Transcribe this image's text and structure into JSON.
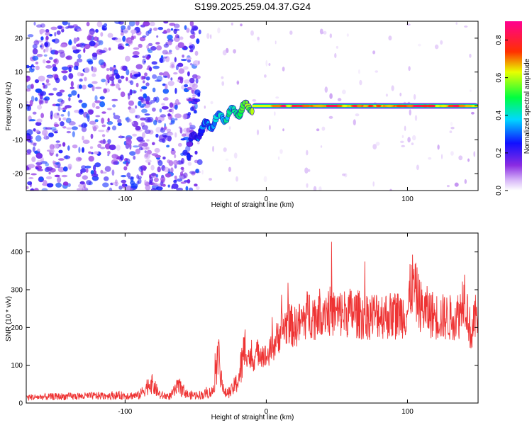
{
  "figure_title": "S199.2025.259.04.37.G24",
  "chart_data": [
    {
      "type": "heatmap",
      "title": "S199.2025.259.04.37.G24",
      "xlabel": "Height of straight line (km)",
      "ylabel": "Frequency (Hz)",
      "xlim": [
        -170,
        150
      ],
      "ylim": [
        -25,
        25
      ],
      "x_ticks": [
        -100,
        0,
        100
      ],
      "x_tick_labels": [
        "-100",
        "0",
        "100"
      ],
      "y_ticks": [
        -20,
        -10,
        0,
        10,
        20
      ],
      "y_tick_labels": [
        "-20",
        "-10",
        "0",
        "10",
        "20"
      ],
      "colorbar": {
        "label": "Normalized spectral amplitude",
        "range": [
          0.0,
          0.9
        ],
        "ticks": [
          0.0,
          0.2,
          0.4,
          0.6,
          0.8
        ],
        "tick_labels": [
          "0.0",
          "0.2",
          "0.4",
          "0.6",
          "0.8"
        ],
        "colormap": "rainbow (white-violet-blue-cyan-green-yellow-red-magenta)"
      },
      "features": {
        "noise_region_x": [
          -170,
          -55
        ],
        "noise_amplitude_range": [
          0.05,
          0.3
        ],
        "transition_x": [
          -55,
          -10
        ],
        "signal_band_frequency_hz": 0,
        "signal_band_x": [
          -10,
          150
        ],
        "signal_band_peak_amplitude": 0.85
      }
    },
    {
      "type": "line",
      "title": "",
      "xlabel": "Height of straight line (km)",
      "ylabel": "SNR (10 * v/v)",
      "xlim": [
        -170,
        150
      ],
      "ylim": [
        0,
        450
      ],
      "x_ticks": [
        -100,
        0,
        100
      ],
      "x_tick_labels": [
        "-100",
        "0",
        "100"
      ],
      "y_ticks": [
        0,
        100,
        200,
        300,
        400
      ],
      "y_tick_labels": [
        "0",
        "100",
        "200",
        "300",
        "400"
      ],
      "series": [
        {
          "name": "SNR",
          "color": "#ee3333",
          "x": [
            -170,
            -150,
            -130,
            -110,
            -90,
            -82,
            -75,
            -68,
            -62,
            -55,
            -45,
            -38,
            -34,
            -30,
            -25,
            -20,
            -15,
            -10,
            -5,
            0,
            5,
            10,
            15,
            20,
            25,
            30,
            35,
            40,
            50,
            60,
            70,
            80,
            90,
            100,
            103,
            110,
            120,
            130,
            137,
            140,
            145,
            150
          ],
          "values": [
            15,
            17,
            18,
            20,
            20,
            55,
            20,
            18,
            45,
            20,
            22,
            30,
            130,
            25,
            30,
            60,
            140,
            110,
            140,
            120,
            150,
            190,
            210,
            200,
            215,
            240,
            230,
            250,
            235,
            240,
            230,
            235,
            230,
            240,
            320,
            250,
            230,
            225,
            235,
            300,
            180,
            250
          ]
        }
      ]
    }
  ]
}
